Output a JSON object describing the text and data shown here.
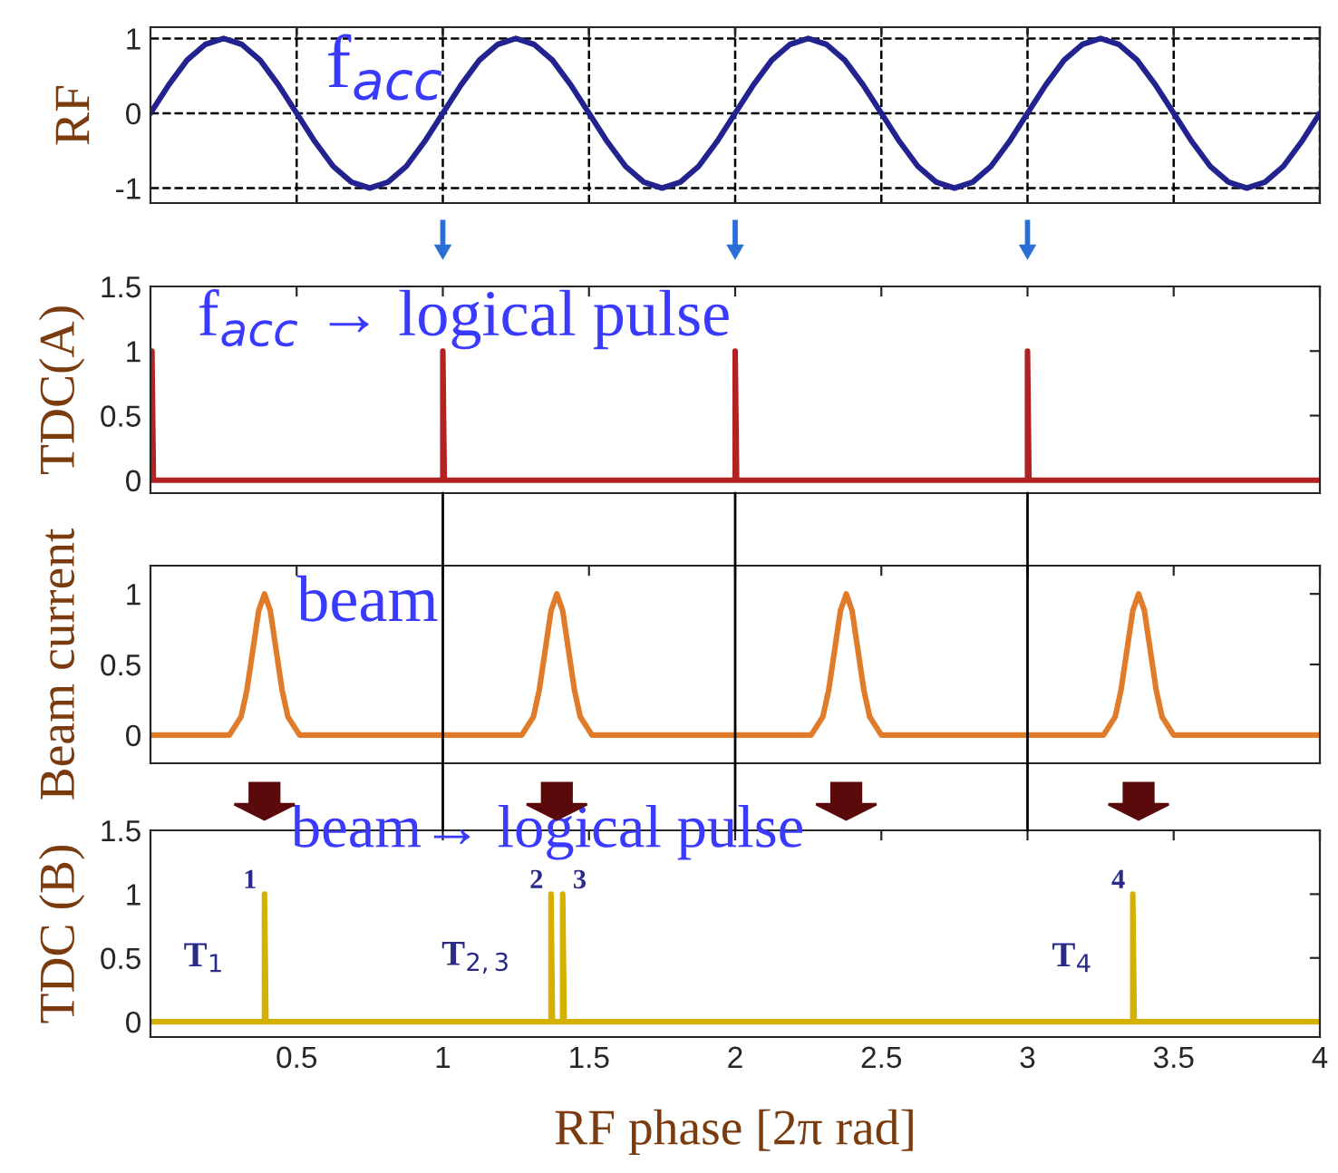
{
  "chart_data": [
    {
      "type": "line",
      "ylabel": "RF",
      "xlim": [
        0,
        4
      ],
      "xticks": [
        0.5,
        1,
        1.5,
        2,
        2.5,
        3,
        3.5,
        4
      ],
      "ylim": [
        -1.2,
        1.15
      ],
      "yticks": [
        -1,
        0,
        1
      ],
      "grid": true,
      "tick_labels": "y",
      "x": [
        0,
        0.0625,
        0.125,
        0.1875,
        0.25,
        0.3125,
        0.375,
        0.4375,
        0.5,
        0.5625,
        0.625,
        0.6875,
        0.75,
        0.8125,
        0.875,
        0.9375,
        1,
        1.0625,
        1.125,
        1.1875,
        1.25,
        1.3125,
        1.375,
        1.4375,
        1.5,
        1.5625,
        1.625,
        1.6875,
        1.75,
        1.8125,
        1.875,
        1.9375,
        2,
        2.0625,
        2.125,
        2.1875,
        2.25,
        2.3125,
        2.375,
        2.4375,
        2.5,
        2.5625,
        2.625,
        2.6875,
        2.75,
        2.8125,
        2.875,
        2.9375,
        3,
        3.0625,
        3.125,
        3.1875,
        3.25,
        3.3125,
        3.375,
        3.4375,
        3.5,
        3.5625,
        3.625,
        3.6875,
        3.75,
        3.8125,
        3.875,
        3.9375,
        4
      ],
      "series": [
        {
          "color": "#23238f",
          "values": [
            0,
            0.38,
            0.71,
            0.92,
            1,
            0.92,
            0.71,
            0.38,
            0,
            -0.38,
            -0.71,
            -0.92,
            -1,
            -0.92,
            -0.71,
            -0.38,
            0,
            0.38,
            0.71,
            0.92,
            1,
            0.92,
            0.71,
            0.38,
            0,
            -0.38,
            -0.71,
            -0.92,
            -1,
            -0.92,
            -0.71,
            -0.38,
            0,
            0.38,
            0.71,
            0.92,
            1,
            0.92,
            0.71,
            0.38,
            0,
            -0.38,
            -0.71,
            -0.92,
            -1,
            -0.92,
            -0.71,
            -0.38,
            0,
            0.38,
            0.71,
            0.92,
            1,
            0.92,
            0.71,
            0.38,
            0,
            -0.38,
            -0.71,
            -0.92,
            -1,
            -0.92,
            -0.71,
            -0.38,
            0
          ]
        }
      ],
      "annotations": [
        "f$_{acc}$"
      ]
    },
    {
      "type": "line",
      "ylabel": "TDC(A)",
      "xlim": [
        0,
        4
      ],
      "xticks": [
        0.5,
        1,
        1.5,
        2,
        2.5,
        3,
        3.5,
        4
      ],
      "ylim": [
        -0.1,
        1.5
      ],
      "yticks": [
        0,
        0.5,
        1,
        1.5
      ],
      "tick_labels": "y",
      "x": [
        0,
        0.005,
        0.005,
        0.01,
        0.995,
        1,
        1,
        1.005,
        1.995,
        2,
        2,
        2.005,
        2.995,
        3,
        3,
        3.005,
        4
      ],
      "series": [
        {
          "color": "#b22222",
          "values": [
            0,
            0,
            1,
            0,
            0,
            0,
            1,
            0,
            0,
            0,
            1,
            0,
            0,
            0,
            1,
            0,
            0
          ]
        }
      ],
      "annotations": [
        "f$_{acc}$ → logical pulse"
      ]
    },
    {
      "type": "line",
      "ylabel": "Beam current",
      "xlim": [
        0,
        4
      ],
      "xticks": [
        0.5,
        1,
        1.5,
        2,
        2.5,
        3,
        3.5,
        4
      ],
      "ylim": [
        -0.2,
        1.2
      ],
      "yticks": [
        0,
        0.5,
        1
      ],
      "tick_labels": "y",
      "x": [
        0,
        0.27,
        0.31,
        0.33,
        0.35,
        0.37,
        0.39,
        0.41,
        0.43,
        0.45,
        0.47,
        0.51,
        1.27,
        1.31,
        1.33,
        1.35,
        1.37,
        1.39,
        1.41,
        1.43,
        1.45,
        1.47,
        1.51,
        2.26,
        2.3,
        2.32,
        2.34,
        2.36,
        2.38,
        2.4,
        2.42,
        2.44,
        2.46,
        2.5,
        3.26,
        3.3,
        3.32,
        3.34,
        3.36,
        3.38,
        3.4,
        3.42,
        3.44,
        3.46,
        3.5,
        4
      ],
      "series": [
        {
          "color": "#e07b2a",
          "values": [
            0,
            0,
            0.13,
            0.32,
            0.6,
            0.88,
            1,
            0.88,
            0.6,
            0.32,
            0.13,
            0,
            0,
            0.13,
            0.32,
            0.6,
            0.88,
            1,
            0.88,
            0.6,
            0.32,
            0.13,
            0,
            0,
            0.13,
            0.32,
            0.6,
            0.88,
            1,
            0.88,
            0.6,
            0.32,
            0.13,
            0,
            0,
            0.13,
            0.32,
            0.6,
            0.88,
            1,
            0.88,
            0.6,
            0.32,
            0.13,
            0,
            0
          ]
        }
      ],
      "ref_lines": [
        {
          "axis": "x",
          "value": 1,
          "color": "#000000"
        },
        {
          "axis": "x",
          "value": 2,
          "color": "#000000"
        },
        {
          "axis": "x",
          "value": 3,
          "color": "#000000"
        }
      ],
      "annotations": [
        "beam"
      ]
    },
    {
      "type": "line",
      "ylabel": "TDC (B)",
      "xlabel": "RF phase [2π rad]",
      "xlim": [
        0,
        4
      ],
      "xticks": [
        0.5,
        1,
        1.5,
        2,
        2.5,
        3,
        3.5,
        4
      ],
      "ylim": [
        -0.12,
        1.5
      ],
      "yticks": [
        0,
        0.5,
        1,
        1.5
      ],
      "x": [
        0,
        0.385,
        0.39,
        0.39,
        0.395,
        1.365,
        1.37,
        1.37,
        1.375,
        1.405,
        1.41,
        1.41,
        1.415,
        3.355,
        3.36,
        3.36,
        3.365,
        4
      ],
      "series": [
        {
          "color": "#d4b000",
          "values": [
            0,
            0,
            0,
            1,
            0,
            0,
            0,
            1,
            0,
            0,
            0,
            1,
            0,
            0,
            0,
            1,
            0,
            0
          ]
        }
      ],
      "annotations": [
        "beam→ logical pulse",
        {
          "text": "1",
          "x": 0.39,
          "y": 1
        },
        {
          "text": "2",
          "x": 1.37,
          "y": 1
        },
        {
          "text": "3",
          "x": 1.41,
          "y": 1
        },
        {
          "text": "4",
          "x": 3.36,
          "y": 1
        },
        {
          "text": "T$_{1}$",
          "x": 0.39,
          "y": 0.5
        },
        {
          "text": "T$_{2,3}$",
          "x": 1.37,
          "y": 0.5
        },
        {
          "text": "T$_{4}$",
          "x": 3.36,
          "y": 0.5
        }
      ]
    }
  ]
}
